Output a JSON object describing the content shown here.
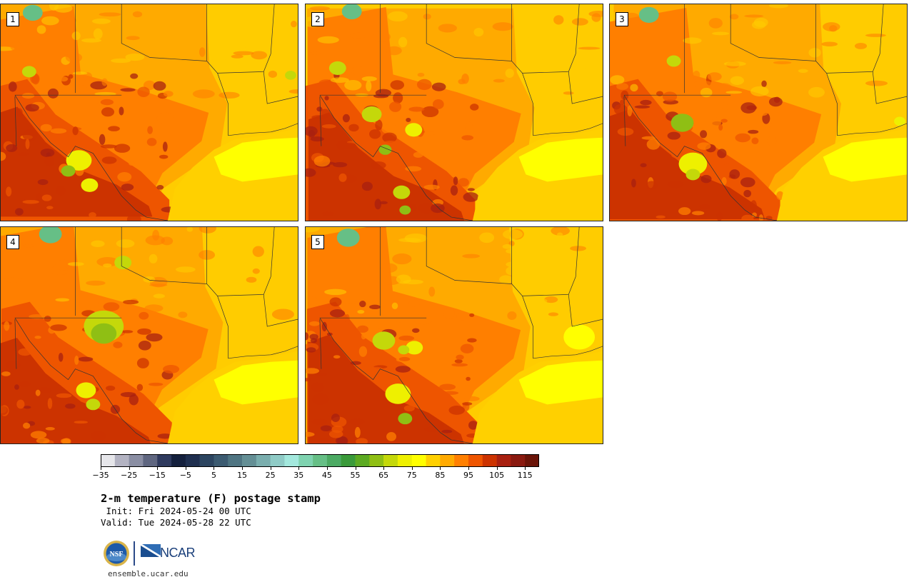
{
  "panels": [
    {
      "label": "1",
      "variant": 1
    },
    {
      "label": "2",
      "variant": 2
    },
    {
      "label": "3",
      "variant": 3
    },
    {
      "label": "4",
      "variant": 4
    },
    {
      "label": "5",
      "variant": 5
    }
  ],
  "colorbar": {
    "min": -35,
    "max": 120,
    "step": 5,
    "tick_labels": [
      "−35",
      "−25",
      "−15",
      "−5",
      "5",
      "15",
      "25",
      "35",
      "45",
      "55",
      "65",
      "75",
      "85",
      "95",
      "105",
      "115"
    ],
    "tick_values": [
      -35,
      -25,
      -15,
      -5,
      5,
      15,
      25,
      35,
      45,
      55,
      65,
      75,
      85,
      95,
      105,
      115
    ],
    "colors": [
      "#e6e6ea",
      "#b3b3c2",
      "#8a8ea3",
      "#5f6680",
      "#2f3a5e",
      "#14203d",
      "#1f2f4f",
      "#2c4560",
      "#3c5b71",
      "#4f7582",
      "#648f95",
      "#7aaeae",
      "#8fcbc6",
      "#a3e8dd",
      "#7fd3b0",
      "#66bf86",
      "#4caa63",
      "#3a9a3a",
      "#5caa22",
      "#8fbf14",
      "#c4d80a",
      "#eef000",
      "#ffff00",
      "#ffd000",
      "#ffaa00",
      "#ff7f00",
      "#ee5500",
      "#cc3300",
      "#a82010",
      "#8a1a10",
      "#6a1408"
    ]
  },
  "title": "2-m temperature (F) postage stamp",
  "init_line": " Init: Fri 2024-05-24 00 UTC",
  "valid_line": "Valid: Tue 2024-05-28 22 UTC",
  "site": "ensemble.ucar.edu",
  "logo": {
    "nsf": "NSF",
    "ncar": "NCAR"
  }
}
